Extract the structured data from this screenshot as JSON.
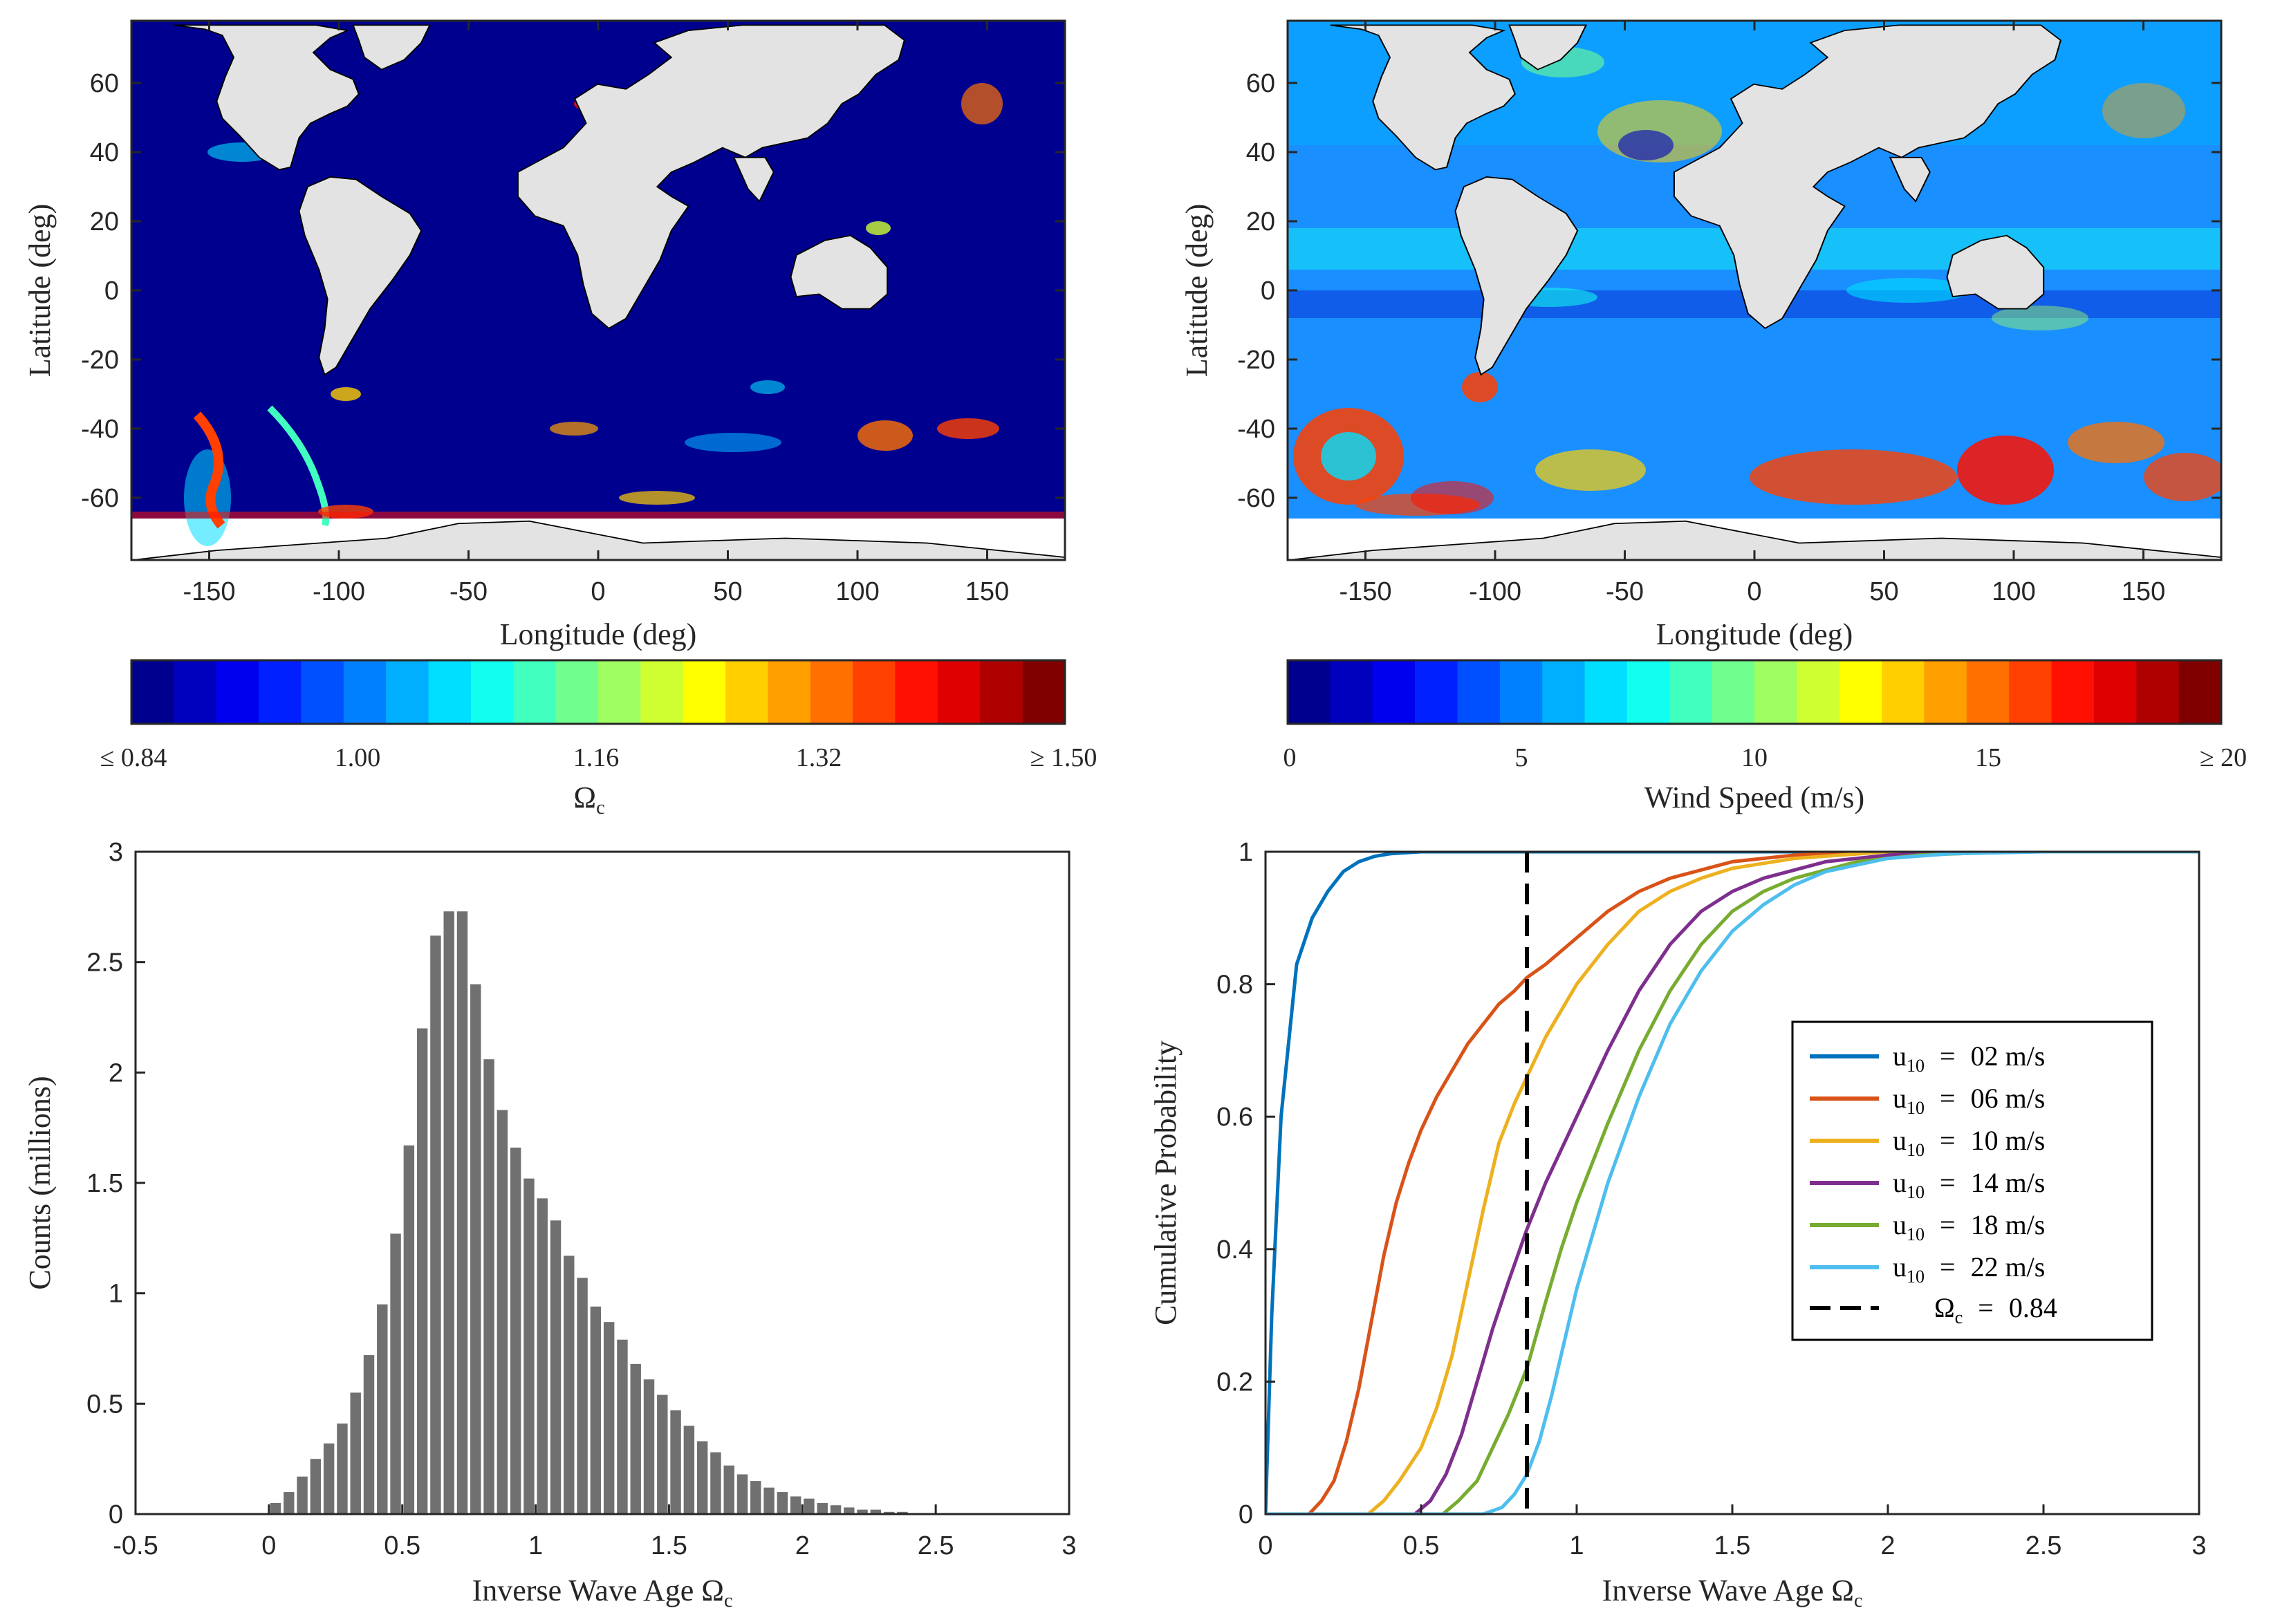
{
  "colors": {
    "ocean_low": "#00008f",
    "land": "#e3e3e3",
    "hist_bar": "#707070",
    "axis": "#262626",
    "series": [
      "#0072bd",
      "#d95319",
      "#edb120",
      "#7e2f8e",
      "#77ac30",
      "#4dbeee"
    ],
    "threshold": "#000000"
  },
  "jet_palette": [
    "#00008f",
    "#0000bf",
    "#0000ef",
    "#0020ff",
    "#0050ff",
    "#0080ff",
    "#00afff",
    "#00dfff",
    "#10ffef",
    "#40ffbf",
    "#70ff8f",
    "#9fff60",
    "#cfff30",
    "#ffff00",
    "#ffcf00",
    "#ff9f00",
    "#ff7000",
    "#ff4000",
    "#ff1000",
    "#df0000",
    "#af0000",
    "#800000"
  ],
  "chart_data": [
    {
      "id": "map-inverse-wave-age",
      "type": "heatmap",
      "xlabel": "Longitude (deg)",
      "ylabel": "Latitude (deg)",
      "xlim": [
        -180,
        180
      ],
      "ylim": [
        -78,
        78
      ],
      "xticks": [
        "-150",
        "-100",
        "-50",
        "0",
        "50",
        "100",
        "150"
      ],
      "xtick_values": [
        -150,
        -100,
        -50,
        0,
        50,
        100,
        150
      ],
      "yticks": [
        "-60",
        "-40",
        "-20",
        "0",
        "20",
        "40",
        "60"
      ],
      "ytick_values": [
        -60,
        -40,
        -20,
        0,
        20,
        40,
        60
      ],
      "colorbar": {
        "ticks": [
          "≤  0.84",
          "1.00",
          "1.16",
          "1.32",
          "≥  1.50"
        ],
        "range": [
          0.84,
          1.5
        ],
        "label": "Ωc",
        "label_main": "Ω",
        "label_sub": "c"
      }
    },
    {
      "id": "map-wind-speed",
      "type": "heatmap",
      "xlabel": "Longitude (deg)",
      "ylabel": "Latitude (deg)",
      "xlim": [
        -180,
        180
      ],
      "ylim": [
        -78,
        78
      ],
      "xticks": [
        "-150",
        "-100",
        "-50",
        "0",
        "50",
        "100",
        "150"
      ],
      "xtick_values": [
        -150,
        -100,
        -50,
        0,
        50,
        100,
        150
      ],
      "yticks": [
        "-60",
        "-40",
        "-20",
        "0",
        "20",
        "40",
        "60"
      ],
      "ytick_values": [
        -60,
        -40,
        -20,
        0,
        20,
        40,
        60
      ],
      "colorbar": {
        "ticks": [
          "0",
          "5",
          "10",
          "15",
          "≥  20"
        ],
        "range": [
          0,
          20
        ],
        "label": "Wind Speed (m/s)"
      }
    },
    {
      "id": "histogram-inverse-wave-age",
      "type": "bar",
      "xlabel": "Inverse Wave Age Ωc",
      "xlabel_main": "Inverse Wave Age Ω",
      "xlabel_sub": "c",
      "ylabel": "Counts (millions)",
      "xlim": [
        -0.5,
        3
      ],
      "ylim": [
        0,
        3
      ],
      "xticks": [
        "-0.5",
        "0",
        "0.5",
        "1",
        "1.5",
        "2",
        "2.5",
        "3"
      ],
      "xtick_values": [
        -0.5,
        0,
        0.5,
        1,
        1.5,
        2,
        2.5,
        3
      ],
      "yticks": [
        "0",
        "0.5",
        "1",
        "1.5",
        "2",
        "2.5",
        "3"
      ],
      "ytick_values": [
        0,
        0.5,
        1,
        1.5,
        2,
        2.5,
        3
      ],
      "bin_width": 0.05,
      "bin_centers": [
        0.025,
        0.075,
        0.125,
        0.175,
        0.225,
        0.275,
        0.325,
        0.375,
        0.425,
        0.475,
        0.525,
        0.575,
        0.625,
        0.675,
        0.725,
        0.775,
        0.825,
        0.875,
        0.925,
        0.975,
        1.025,
        1.075,
        1.125,
        1.175,
        1.225,
        1.275,
        1.325,
        1.375,
        1.425,
        1.475,
        1.525,
        1.575,
        1.625,
        1.675,
        1.725,
        1.775,
        1.825,
        1.875,
        1.925,
        1.975,
        2.025,
        2.075,
        2.125,
        2.175,
        2.225,
        2.275,
        2.325,
        2.375
      ],
      "values": [
        0.05,
        0.1,
        0.17,
        0.25,
        0.32,
        0.41,
        0.55,
        0.72,
        0.95,
        1.27,
        1.67,
        2.2,
        2.62,
        2.73,
        2.73,
        2.4,
        2.06,
        1.83,
        1.66,
        1.52,
        1.43,
        1.33,
        1.17,
        1.07,
        0.94,
        0.87,
        0.79,
        0.68,
        0.61,
        0.54,
        0.47,
        0.4,
        0.33,
        0.28,
        0.22,
        0.18,
        0.15,
        0.12,
        0.1,
        0.08,
        0.07,
        0.05,
        0.04,
        0.03,
        0.02,
        0.02,
        0.01,
        0.01
      ]
    },
    {
      "id": "cdf-inverse-wave-age",
      "type": "line",
      "xlabel": "Inverse Wave Age Ωc",
      "xlabel_main": "Inverse Wave Age Ω",
      "xlabel_sub": "c",
      "ylabel": "Cumulative Probability",
      "xlim": [
        0,
        3
      ],
      "ylim": [
        0,
        1
      ],
      "xticks": [
        "0",
        "0.5",
        "1",
        "1.5",
        "2",
        "2.5",
        "3"
      ],
      "xtick_values": [
        0,
        0.5,
        1,
        1.5,
        2,
        2.5,
        3
      ],
      "yticks": [
        "0",
        "0.2",
        "0.4",
        "0.6",
        "0.8",
        "1"
      ],
      "ytick_values": [
        0,
        0.2,
        0.4,
        0.6,
        0.8,
        1
      ],
      "threshold": 0.84,
      "series": [
        {
          "name": "u10 = 02 m/s",
          "speed": "02",
          "x": [
            0,
            0.02,
            0.05,
            0.1,
            0.15,
            0.2,
            0.25,
            0.3,
            0.35,
            0.4,
            0.5,
            3.0
          ],
          "y": [
            0,
            0.3,
            0.6,
            0.83,
            0.9,
            0.94,
            0.97,
            0.985,
            0.993,
            0.997,
            1.0,
            1.0
          ]
        },
        {
          "name": "u10 = 06 m/s",
          "speed": "06",
          "x": [
            0,
            0.14,
            0.18,
            0.22,
            0.26,
            0.3,
            0.34,
            0.38,
            0.42,
            0.46,
            0.5,
            0.55,
            0.6,
            0.65,
            0.7,
            0.75,
            0.8,
            0.84,
            0.9,
            1.0,
            1.1,
            1.2,
            1.3,
            1.5,
            1.7,
            2.0,
            2.5,
            3.0
          ],
          "y": [
            0,
            0,
            0.02,
            0.05,
            0.11,
            0.19,
            0.29,
            0.39,
            0.47,
            0.53,
            0.58,
            0.63,
            0.67,
            0.71,
            0.74,
            0.77,
            0.79,
            0.81,
            0.83,
            0.87,
            0.91,
            0.94,
            0.96,
            0.985,
            0.995,
            1.0,
            1.0,
            1.0
          ]
        },
        {
          "name": "u10 = 10 m/s",
          "speed": "10",
          "x": [
            0,
            0.33,
            0.38,
            0.43,
            0.5,
            0.55,
            0.6,
            0.65,
            0.7,
            0.75,
            0.8,
            0.84,
            0.9,
            1.0,
            1.1,
            1.2,
            1.3,
            1.4,
            1.5,
            1.7,
            2.0,
            2.5,
            3.0
          ],
          "y": [
            0,
            0,
            0.02,
            0.05,
            0.1,
            0.16,
            0.24,
            0.35,
            0.46,
            0.56,
            0.62,
            0.66,
            0.72,
            0.8,
            0.86,
            0.91,
            0.94,
            0.96,
            0.975,
            0.99,
            1.0,
            1.0,
            1.0
          ]
        },
        {
          "name": "u10 = 14 m/s",
          "speed": "14",
          "x": [
            0,
            0.48,
            0.53,
            0.58,
            0.63,
            0.68,
            0.73,
            0.78,
            0.84,
            0.9,
            1.0,
            1.1,
            1.2,
            1.3,
            1.4,
            1.5,
            1.6,
            1.8,
            2.0,
            2.3,
            2.6,
            3.0
          ],
          "y": [
            0,
            0,
            0.02,
            0.06,
            0.12,
            0.2,
            0.28,
            0.35,
            0.43,
            0.5,
            0.6,
            0.7,
            0.79,
            0.86,
            0.91,
            0.94,
            0.96,
            0.985,
            0.995,
            1.0,
            1.0,
            1.0
          ]
        },
        {
          "name": "u10 = 18 m/s",
          "speed": "18",
          "x": [
            0,
            0.57,
            0.62,
            0.68,
            0.73,
            0.78,
            0.84,
            0.9,
            0.95,
            1.0,
            1.1,
            1.2,
            1.3,
            1.4,
            1.5,
            1.6,
            1.7,
            1.9,
            2.1,
            2.4,
            2.7,
            3.0
          ],
          "y": [
            0,
            0,
            0.02,
            0.05,
            0.1,
            0.15,
            0.22,
            0.32,
            0.4,
            0.47,
            0.59,
            0.7,
            0.79,
            0.86,
            0.91,
            0.94,
            0.96,
            0.985,
            0.995,
            1.0,
            1.0,
            1.0
          ]
        },
        {
          "name": "u10 = 22 m/s",
          "speed": "22",
          "x": [
            0,
            0.7,
            0.76,
            0.8,
            0.84,
            0.88,
            0.92,
            0.96,
            1.0,
            1.05,
            1.1,
            1.2,
            1.3,
            1.4,
            1.5,
            1.6,
            1.7,
            1.8,
            2.0,
            2.2,
            2.5,
            2.8,
            3.0
          ],
          "y": [
            0,
            0,
            0.01,
            0.03,
            0.06,
            0.11,
            0.18,
            0.26,
            0.34,
            0.42,
            0.5,
            0.63,
            0.74,
            0.82,
            0.88,
            0.92,
            0.95,
            0.97,
            0.99,
            0.997,
            1.0,
            1.0,
            1.0
          ]
        }
      ],
      "legend": {
        "position": "right-middle",
        "var_main": "u",
        "var_sub": "10",
        "unit": "m/s",
        "threshold_main": "Ω",
        "threshold_sub": "c",
        "threshold_value": "0.84"
      }
    }
  ]
}
